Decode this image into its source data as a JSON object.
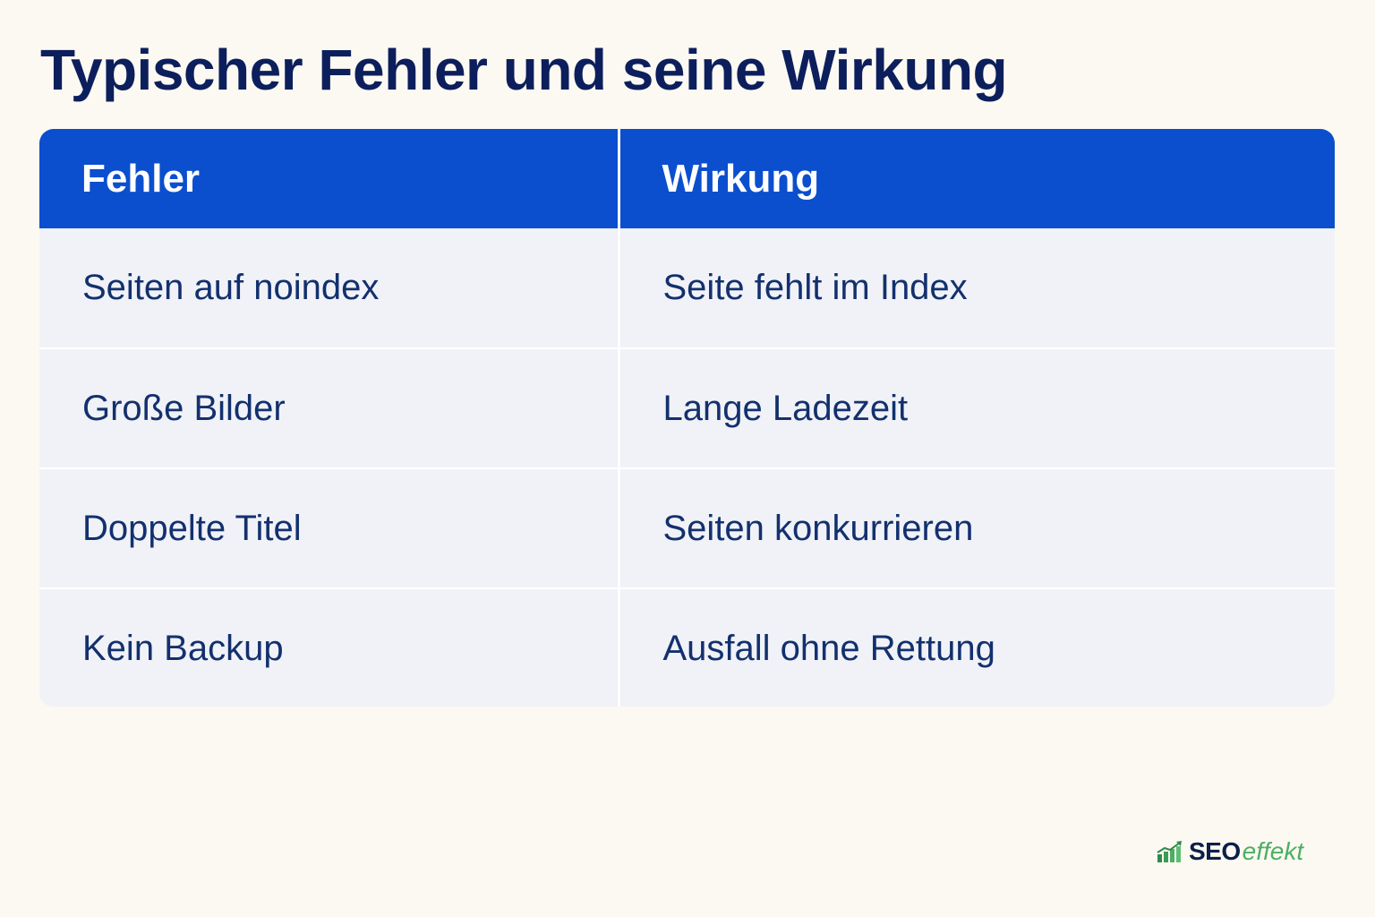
{
  "title": "Typischer Fehler und seine Wirkung",
  "table": {
    "headers": [
      "Fehler",
      "Wirkung"
    ],
    "rows": [
      [
        "Seiten auf noindex",
        "Seite fehlt im Index"
      ],
      [
        "Große Bilder",
        "Lange Ladezeit"
      ],
      [
        "Doppelte Titel",
        "Seiten konkurrieren"
      ],
      [
        "Kein Backup",
        "Ausfall ohne Rettung"
      ]
    ]
  },
  "logo": {
    "icon": "bar-chart-arrow-icon",
    "part1": "SEO",
    "part2": "effekt",
    "colors": {
      "dark": "#0c1f4a",
      "green": "#4caf62"
    }
  },
  "colors": {
    "background": "#fcf9f2",
    "header_bg": "#0b4fcf",
    "row_bg": "#f0f2f7",
    "title_text": "#0c1f5c",
    "cell_text": "#13306e"
  }
}
